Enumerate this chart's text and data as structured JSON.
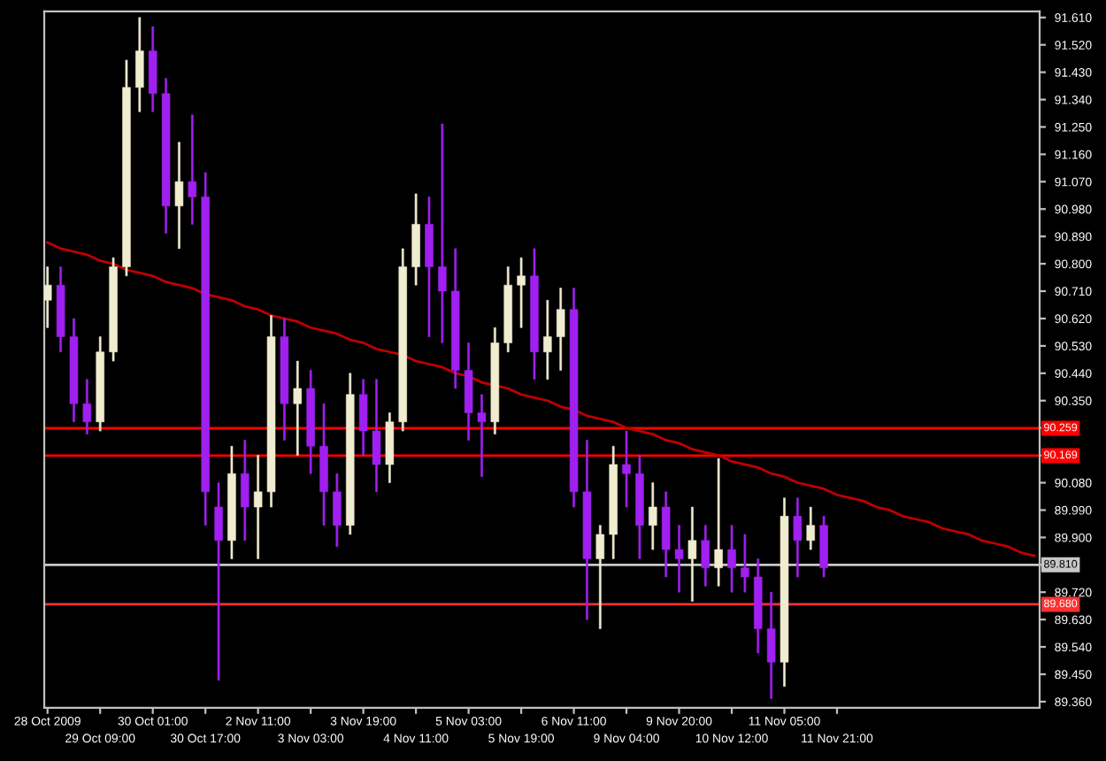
{
  "chart_data": {
    "type": "candlestick",
    "categories": [
      "28 Oct 2009",
      null,
      null,
      null,
      "29 Oct 09:00",
      null,
      null,
      null,
      "30 Oct 01:00",
      null,
      null,
      null,
      "30 Oct 17:00",
      null,
      null,
      null,
      "2 Nov 11:00",
      null,
      null,
      null,
      "3 Nov 03:00",
      null,
      null,
      null,
      "3 Nov 19:00",
      null,
      null,
      null,
      "4 Nov 11:00",
      null,
      null,
      null,
      "5 Nov 03:00",
      null,
      null,
      null,
      "5 Nov 19:00",
      null,
      null,
      null,
      "6 Nov 11:00",
      null,
      null,
      null,
      "9 Nov 04:00",
      null,
      null,
      null,
      "9 Nov 20:00",
      null,
      null,
      null,
      "10 Nov 12:00",
      null,
      null,
      null,
      "11 Nov 05:00",
      null,
      null,
      null,
      "11 Nov 21:00",
      null,
      null,
      null,
      null,
      null,
      null,
      null,
      null,
      null,
      null,
      null,
      null,
      null,
      null,
      null
    ],
    "ylim": [
      89.34,
      91.63
    ],
    "yticks": [
      {
        "value": 91.61,
        "label": "91.610"
      },
      {
        "value": 91.52,
        "label": "91.520"
      },
      {
        "value": 91.43,
        "label": "91.430"
      },
      {
        "value": 91.34,
        "label": "91.340"
      },
      {
        "value": 91.25,
        "label": "91.250"
      },
      {
        "value": 91.16,
        "label": "91.160"
      },
      {
        "value": 91.07,
        "label": "91.070"
      },
      {
        "value": 90.98,
        "label": "90.980"
      },
      {
        "value": 90.89,
        "label": "90.890"
      },
      {
        "value": 90.8,
        "label": "90.800"
      },
      {
        "value": 90.71,
        "label": "90.710"
      },
      {
        "value": 90.62,
        "label": "90.620"
      },
      {
        "value": 90.53,
        "label": "90.530"
      },
      {
        "value": 90.44,
        "label": "90.440"
      },
      {
        "value": 90.35,
        "label": "90.350"
      },
      {
        "value": 90.26,
        "label": null
      },
      {
        "value": 90.17,
        "label": null
      },
      {
        "value": 90.08,
        "label": "90.080"
      },
      {
        "value": 89.99,
        "label": "89.990"
      },
      {
        "value": 89.9,
        "label": "89.900"
      },
      {
        "value": 89.81,
        "label": null
      },
      {
        "value": 89.72,
        "label": "89.720"
      },
      {
        "value": 89.63,
        "label": "89.630"
      },
      {
        "value": 89.54,
        "label": "89.540"
      },
      {
        "value": 89.45,
        "label": "89.450"
      },
      {
        "value": 89.36,
        "label": "89.360"
      }
    ],
    "grid": false,
    "ohlc": [
      [
        90.68,
        90.79,
        90.59,
        90.73
      ],
      [
        90.73,
        90.79,
        90.51,
        90.56
      ],
      [
        90.56,
        90.62,
        90.28,
        90.34
      ],
      [
        90.34,
        90.42,
        90.24,
        90.28
      ],
      [
        90.28,
        90.56,
        90.25,
        90.51
      ],
      [
        90.51,
        90.82,
        90.48,
        90.79
      ],
      [
        90.79,
        91.47,
        90.76,
        91.38
      ],
      [
        91.38,
        91.61,
        91.3,
        91.5
      ],
      [
        91.5,
        91.58,
        91.3,
        91.36
      ],
      [
        91.36,
        91.41,
        90.9,
        90.99
      ],
      [
        90.99,
        91.2,
        90.85,
        91.07
      ],
      [
        91.07,
        91.29,
        90.93,
        91.02
      ],
      [
        91.02,
        91.1,
        89.94,
        90.05
      ],
      [
        90.0,
        90.08,
        89.43,
        89.89
      ],
      [
        89.89,
        90.2,
        89.83,
        90.11
      ],
      [
        90.11,
        90.22,
        89.89,
        90.0
      ],
      [
        90.0,
        90.17,
        89.83,
        90.05
      ],
      [
        90.05,
        90.63,
        90.0,
        90.56
      ],
      [
        90.56,
        90.62,
        90.22,
        90.34
      ],
      [
        90.34,
        90.48,
        90.17,
        90.39
      ],
      [
        90.39,
        90.45,
        90.11,
        90.2
      ],
      [
        90.2,
        90.34,
        89.94,
        90.05
      ],
      [
        90.05,
        90.11,
        89.87,
        89.94
      ],
      [
        89.94,
        90.44,
        89.91,
        90.37
      ],
      [
        90.37,
        90.42,
        90.17,
        90.25
      ],
      [
        90.25,
        90.42,
        90.05,
        90.14
      ],
      [
        90.14,
        90.31,
        90.08,
        90.28
      ],
      [
        90.28,
        90.85,
        90.25,
        90.79
      ],
      [
        90.79,
        91.03,
        90.73,
        90.93
      ],
      [
        90.93,
        91.02,
        90.56,
        90.79
      ],
      [
        90.79,
        91.26,
        90.54,
        90.71
      ],
      [
        90.71,
        90.85,
        90.39,
        90.45
      ],
      [
        90.45,
        90.54,
        90.22,
        90.31
      ],
      [
        90.31,
        90.37,
        90.1,
        90.28
      ],
      [
        90.28,
        90.59,
        90.24,
        90.54
      ],
      [
        90.54,
        90.79,
        90.51,
        90.73
      ],
      [
        90.73,
        90.82,
        90.59,
        90.76
      ],
      [
        90.76,
        90.85,
        90.42,
        90.51
      ],
      [
        90.51,
        90.68,
        90.42,
        90.56
      ],
      [
        90.56,
        90.72,
        90.45,
        90.65
      ],
      [
        90.65,
        90.72,
        90.0,
        90.05
      ],
      [
        90.05,
        90.22,
        89.63,
        89.83
      ],
      [
        89.83,
        89.94,
        89.6,
        89.91
      ],
      [
        89.91,
        90.2,
        89.83,
        90.14
      ],
      [
        90.14,
        90.25,
        90.0,
        90.11
      ],
      [
        90.11,
        90.17,
        89.83,
        89.94
      ],
      [
        89.94,
        90.08,
        89.86,
        90.0
      ],
      [
        90.0,
        90.05,
        89.77,
        89.86
      ],
      [
        89.86,
        89.94,
        89.72,
        89.83
      ],
      [
        89.83,
        90.0,
        89.69,
        89.89
      ],
      [
        89.89,
        89.94,
        89.74,
        89.8
      ],
      [
        89.8,
        90.16,
        89.74,
        89.86
      ],
      [
        89.86,
        89.94,
        89.72,
        89.8
      ],
      [
        89.8,
        89.91,
        89.72,
        89.77
      ],
      [
        89.77,
        89.83,
        89.52,
        89.6
      ],
      [
        89.6,
        89.72,
        89.37,
        89.49
      ],
      [
        89.49,
        90.03,
        89.41,
        89.97
      ],
      [
        89.97,
        90.03,
        89.77,
        89.89
      ],
      [
        89.89,
        90.0,
        89.86,
        89.94
      ],
      [
        89.94,
        89.97,
        89.77,
        89.8
      ],
      null,
      null,
      null,
      null,
      null,
      null,
      null,
      null,
      null,
      null,
      null,
      null,
      null,
      null,
      null,
      null
    ],
    "colors": [
      "#f0ecd0",
      "#a020f0",
      "#a020f0",
      "#a020f0",
      "#f0ecd0",
      "#f0ecd0",
      "#f0ecd0",
      "#f0ecd0",
      "#a020f0",
      "#a020f0",
      "#f0ecd0",
      "#a020f0",
      "#a020f0",
      "#a020f0",
      "#f0ecd0",
      "#a020f0",
      "#f0ecd0",
      "#f0ecd0",
      "#a020f0",
      "#f0ecd0",
      "#a020f0",
      "#a020f0",
      "#a020f0",
      "#f0ecd0",
      "#a020f0",
      "#a020f0",
      "#f0ecd0",
      "#f0ecd0",
      "#f0ecd0",
      "#a020f0",
      "#a020f0",
      "#a020f0",
      "#a020f0",
      "#a020f0",
      "#f0ecd0",
      "#f0ecd0",
      "#f0ecd0",
      "#a020f0",
      "#f0ecd0",
      "#f0ecd0",
      "#a020f0",
      "#a020f0",
      "#f0ecd0",
      "#f0ecd0",
      "#a020f0",
      "#a020f0",
      "#f0ecd0",
      "#a020f0",
      "#a020f0",
      "#f0ecd0",
      "#a020f0",
      "#f0ecd0",
      "#a020f0",
      "#a020f0",
      "#a020f0",
      "#a020f0",
      "#f0ecd0",
      "#a020f0",
      "#f0ecd0",
      "#a020f0",
      null,
      null,
      null,
      null,
      null,
      null,
      null,
      null,
      null,
      null,
      null,
      null,
      null,
      null,
      null,
      null
    ],
    "series": [
      {
        "type": "line",
        "color": "#c00000",
        "values": [
          90.87,
          90.85,
          90.84,
          90.83,
          90.81,
          90.8,
          90.78,
          90.77,
          90.76,
          90.74,
          90.73,
          90.72,
          90.7,
          90.69,
          90.68,
          90.66,
          90.65,
          90.63,
          90.62,
          90.61,
          90.59,
          90.58,
          90.57,
          90.55,
          90.54,
          90.52,
          90.51,
          90.5,
          90.48,
          90.47,
          90.46,
          90.44,
          90.43,
          90.41,
          90.4,
          90.39,
          90.37,
          90.36,
          90.35,
          90.33,
          90.32,
          90.3,
          90.29,
          90.28,
          90.26,
          90.25,
          90.24,
          90.22,
          90.21,
          90.19,
          90.18,
          90.17,
          90.15,
          90.14,
          90.13,
          90.11,
          90.1,
          90.08,
          90.07,
          90.06,
          90.04,
          90.03,
          90.02,
          90.0,
          89.99,
          89.97,
          89.96,
          89.95,
          89.93,
          89.92,
          89.91,
          89.89,
          89.88,
          89.87,
          89.85,
          89.84
        ]
      }
    ],
    "ref_lines": [
      {
        "axis": "y",
        "value": 90.259,
        "label": "90.259",
        "color": "#ff0000",
        "line_style": "solid"
      },
      {
        "axis": "y",
        "value": 90.169,
        "label": "90.169",
        "color": "#ff0000",
        "line_style": "solid"
      },
      {
        "axis": "y",
        "value": 89.81,
        "label": "89.810",
        "color": "#c8c8c8",
        "line_style": "solid"
      },
      {
        "axis": "y",
        "value": 89.68,
        "label": "89.680",
        "color": "#ff3030",
        "line_style": "solid"
      }
    ]
  }
}
